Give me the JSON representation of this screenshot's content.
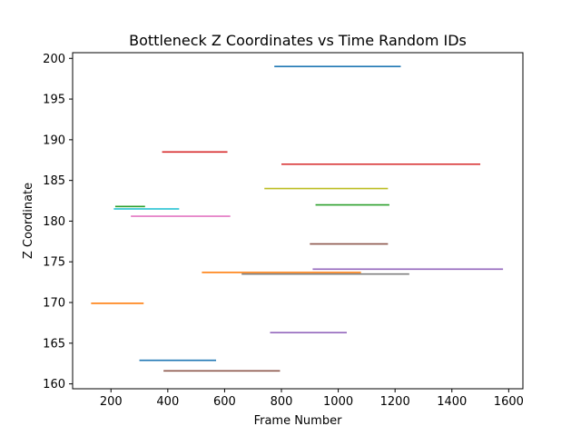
{
  "chart_data": {
    "type": "line",
    "title": "Bottleneck Z Coordinates vs Time Random IDs",
    "xlabel": "Frame Number",
    "ylabel": "Z Coordinate",
    "xlim": [
      65,
      1650
    ],
    "ylim": [
      159.4,
      200.7
    ],
    "grid": false,
    "legend": "none",
    "x_ticks": [
      200,
      400,
      600,
      800,
      1000,
      1200,
      1400,
      1600
    ],
    "y_ticks": [
      160,
      165,
      170,
      175,
      180,
      185,
      190,
      195,
      200
    ],
    "series": [
      {
        "x": [
          775,
          1220
        ],
        "y": [
          199.0,
          199.0
        ],
        "color": "#1f77b4"
      },
      {
        "x": [
          380,
          610
        ],
        "y": [
          188.5,
          188.5
        ],
        "color": "#d62728"
      },
      {
        "x": [
          800,
          1500
        ],
        "y": [
          187.0,
          187.0
        ],
        "color": "#d62728"
      },
      {
        "x": [
          740,
          1175
        ],
        "y": [
          184.0,
          184.0
        ],
        "color": "#bcbd22"
      },
      {
        "x": [
          920,
          1180
        ],
        "y": [
          182.0,
          182.0
        ],
        "color": "#2ca02c"
      },
      {
        "x": [
          215,
          320
        ],
        "y": [
          181.8,
          181.8
        ],
        "color": "#2ca02c"
      },
      {
        "x": [
          210,
          440
        ],
        "y": [
          181.5,
          181.5
        ],
        "color": "#17becf"
      },
      {
        "x": [
          270,
          620
        ],
        "y": [
          180.6,
          180.6
        ],
        "color": "#e377c2"
      },
      {
        "x": [
          900,
          1175
        ],
        "y": [
          177.2,
          177.2
        ],
        "color": "#8c564b"
      },
      {
        "x": [
          910,
          1580
        ],
        "y": [
          174.1,
          174.1
        ],
        "color": "#9467bd"
      },
      {
        "x": [
          520,
          1080
        ],
        "y": [
          173.7,
          173.7
        ],
        "color": "#ff7f0e"
      },
      {
        "x": [
          660,
          1250
        ],
        "y": [
          173.5,
          173.5
        ],
        "color": "#7f7f7f"
      },
      {
        "x": [
          130,
          315
        ],
        "y": [
          169.9,
          169.9
        ],
        "color": "#ff7f0e"
      },
      {
        "x": [
          760,
          1030
        ],
        "y": [
          166.3,
          166.3
        ],
        "color": "#9467bd"
      },
      {
        "x": [
          300,
          570
        ],
        "y": [
          162.9,
          162.9
        ],
        "color": "#1f77b4"
      },
      {
        "x": [
          385,
          795
        ],
        "y": [
          161.6,
          161.6
        ],
        "color": "#8c564b"
      }
    ]
  }
}
